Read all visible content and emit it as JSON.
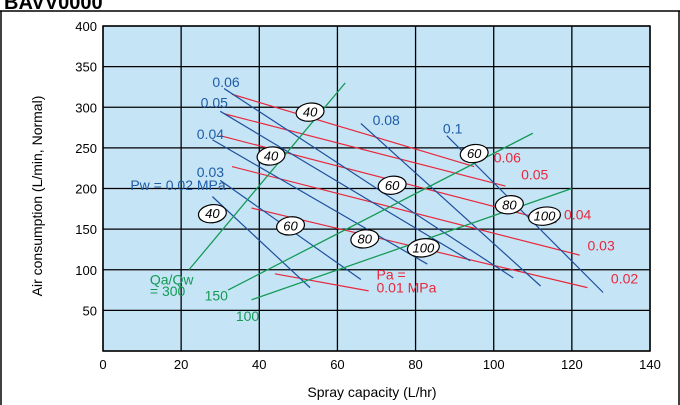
{
  "header_fragment": "BAVV0000",
  "colors": {
    "plot_bg": "#c5e5f7",
    "grid": "#000000",
    "pw_lines": "#1e4f9c",
    "pa_lines": "#e8283c",
    "ratio_lines": "#159a54",
    "pw_text": "#1f5ca6",
    "pa_text": "#e8283c",
    "ratio_text": "#159a54"
  },
  "chart_data": {
    "type": "line",
    "xlabel": "Spray capacity (L/hr)",
    "ylabel": "Air consumption (L/min, Normal)",
    "xlim": [
      0,
      140
    ],
    "ylim": [
      0,
      400
    ],
    "xticks": [
      0,
      20,
      40,
      60,
      80,
      100,
      120,
      140
    ],
    "yticks": [
      0,
      50,
      100,
      150,
      200,
      250,
      300,
      350,
      400
    ],
    "grid": true,
    "pw_series": [
      {
        "label": "Pw = 0.02 MPa",
        "x": [
          28,
          53
        ],
        "y": [
          190,
          78
        ]
      },
      {
        "label": "0.03",
        "x": [
          30,
          66
        ],
        "y": [
          210,
          88
        ]
      },
      {
        "label": "0.04",
        "x": [
          28,
          83
        ],
        "y": [
          260,
          107
        ]
      },
      {
        "label": "0.05",
        "x": [
          30,
          94
        ],
        "y": [
          295,
          111
        ]
      },
      {
        "label": "0.06",
        "x": [
          31,
          105
        ],
        "y": [
          323,
          90
        ]
      },
      {
        "label": "0.08",
        "x": [
          66,
          112
        ],
        "y": [
          280,
          80
        ]
      },
      {
        "label": "0.1",
        "x": [
          88,
          128
        ],
        "y": [
          265,
          72
        ]
      }
    ],
    "pa_series": [
      {
        "label": "Pa = 0.01 MPa",
        "x": [
          44,
          68
        ],
        "y": [
          95,
          74
        ]
      },
      {
        "label": "0.02",
        "x": [
          38,
          124
        ],
        "y": [
          176,
          78
        ]
      },
      {
        "label": "0.03",
        "x": [
          33,
          122
        ],
        "y": [
          227,
          118
        ]
      },
      {
        "label": "0.04",
        "x": [
          30,
          116
        ],
        "y": [
          265,
          158
        ]
      },
      {
        "label": "0.05",
        "x": [
          31,
          103
        ],
        "y": [
          292,
          203
        ]
      },
      {
        "label": "0.06",
        "x": [
          33,
          95
        ],
        "y": [
          316,
          227
        ]
      }
    ],
    "ratio_series": [
      {
        "label": "Qa/Qw = 300",
        "x": [
          22,
          62
        ],
        "y": [
          100,
          330
        ]
      },
      {
        "label": "150",
        "x": [
          32,
          110
        ],
        "y": [
          75,
          268
        ]
      },
      {
        "label": "100",
        "x": [
          38,
          120
        ],
        "y": [
          63,
          200
        ]
      }
    ],
    "spray_capacity_labels": [
      {
        "text": "40",
        "x": 53,
        "y": 294
      },
      {
        "text": "40",
        "x": 43,
        "y": 240
      },
      {
        "text": "40",
        "x": 28,
        "y": 169
      },
      {
        "text": "60",
        "x": 95,
        "y": 243
      },
      {
        "text": "60",
        "x": 74,
        "y": 204
      },
      {
        "text": "60",
        "x": 48,
        "y": 154
      },
      {
        "text": "80",
        "x": 104,
        "y": 180
      },
      {
        "text": "80",
        "x": 67,
        "y": 138
      },
      {
        "text": "100",
        "x": 113,
        "y": 166
      },
      {
        "text": "100",
        "x": 82,
        "y": 127
      }
    ],
    "series_label_positions": {
      "pw": [
        {
          "text": "0.06",
          "x": 28,
          "y": 325
        },
        {
          "text": "0.05",
          "x": 25,
          "y": 300
        },
        {
          "text": "0.04",
          "x": 24,
          "y": 261
        },
        {
          "text": "0.03",
          "x": 24,
          "y": 214
        },
        {
          "text": "Pw = 0.02 MPa",
          "x": 7,
          "y": 198
        },
        {
          "text": "0.08",
          "x": 69,
          "y": 278
        },
        {
          "text": "0.1",
          "x": 87,
          "y": 268
        }
      ],
      "pa": [
        {
          "text": "0.06",
          "x": 100,
          "y": 232
        },
        {
          "text": "0.05",
          "x": 107,
          "y": 211
        },
        {
          "text": "0.04",
          "x": 118,
          "y": 162
        },
        {
          "text": "0.03",
          "x": 124,
          "y": 124
        },
        {
          "text": "0.02",
          "x": 130,
          "y": 83
        },
        {
          "text": "Pa =",
          "x": 70,
          "y": 88
        },
        {
          "text": "0.01 MPa",
          "x": 70,
          "y": 72
        }
      ],
      "ratio": [
        {
          "text": "Qa/Qw",
          "x": 12,
          "y": 82
        },
        {
          "text": "= 300",
          "x": 12,
          "y": 68
        },
        {
          "text": "150",
          "x": 26,
          "y": 62
        },
        {
          "text": "100",
          "x": 34,
          "y": 37
        }
      ]
    }
  }
}
